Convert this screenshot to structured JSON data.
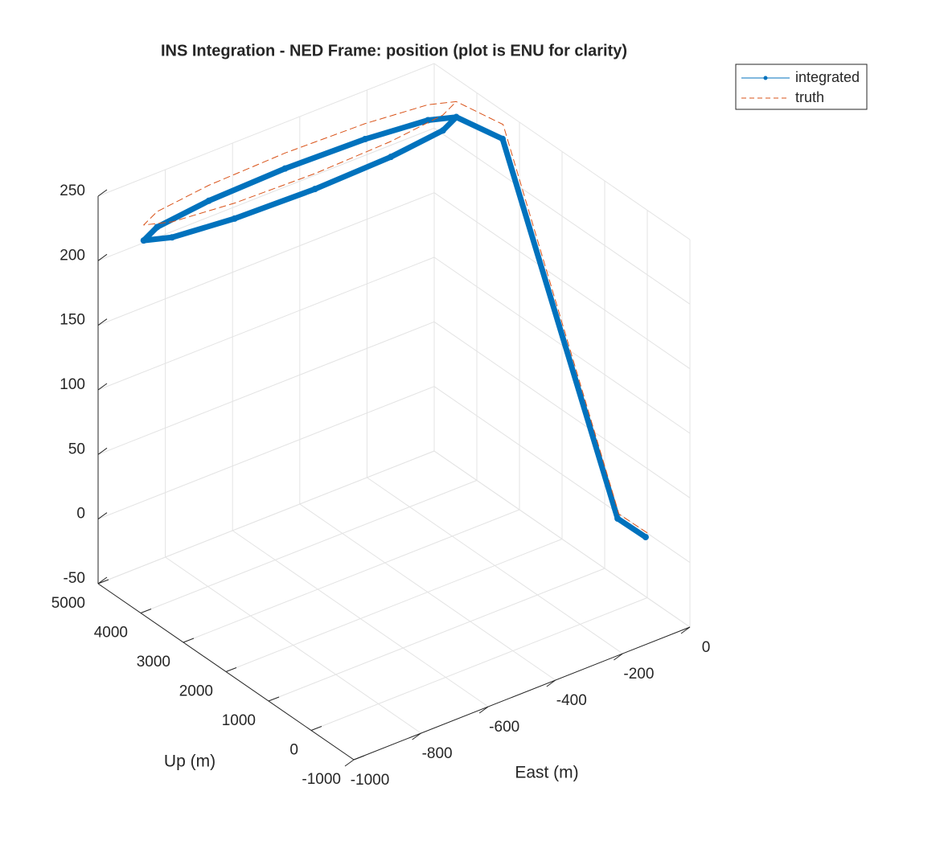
{
  "chart_data": {
    "type": "line3d",
    "title": "INS Integration - NED Frame: position (plot is ENU for clarity)",
    "xlabel": "East (m)",
    "ylabel": "Up (m)",
    "xlim": [
      -1000,
      0
    ],
    "xticks": [
      -1000,
      -800,
      -600,
      -400,
      -200,
      0
    ],
    "ylim": [
      -1000,
      5000
    ],
    "yticks": [
      -1000,
      0,
      1000,
      2000,
      3000,
      4000,
      5000
    ],
    "zlim": [
      -50,
      250
    ],
    "zticks": [
      -50,
      0,
      50,
      100,
      150,
      200,
      250
    ],
    "grid": true,
    "legend": "northeast-outside",
    "series": [
      {
        "name": "integrated",
        "color": "#0072bd",
        "style": "solid-marker",
        "x": [
          -14,
          -16,
          -60,
          -70,
          -132,
          -303,
          -535,
          -768,
          -938,
          -1000,
          -938,
          -768,
          -535,
          -303,
          -132,
          -70
        ],
        "y": [
          -71,
          570,
          2923,
          3930,
          4105,
          4233,
          4280,
          4233,
          4105,
          3930,
          3755,
          3627,
          3580,
          3627,
          3755,
          3930
        ],
        "z": [
          0,
          0,
          245,
          240,
          240,
          240,
          240,
          240,
          240,
          240,
          240,
          240,
          240,
          240,
          240,
          240
        ]
      },
      {
        "name": "truth",
        "color": "#d95319",
        "style": "dashed",
        "x": [
          -10,
          -12,
          -55,
          -70,
          -132,
          -303,
          -535,
          -768,
          -938,
          -1000,
          -938,
          -768,
          -535,
          -303,
          -132,
          -70
        ],
        "y": [
          -71,
          570,
          2950,
          3930,
          4105,
          4233,
          4280,
          4233,
          4105,
          3930,
          3755,
          3627,
          3580,
          3627,
          3755,
          3930
        ],
        "z": [
          3,
          3,
          255,
          252,
          252,
          252,
          252,
          252,
          252,
          252,
          252,
          252,
          252,
          252,
          252,
          252
        ]
      }
    ]
  }
}
